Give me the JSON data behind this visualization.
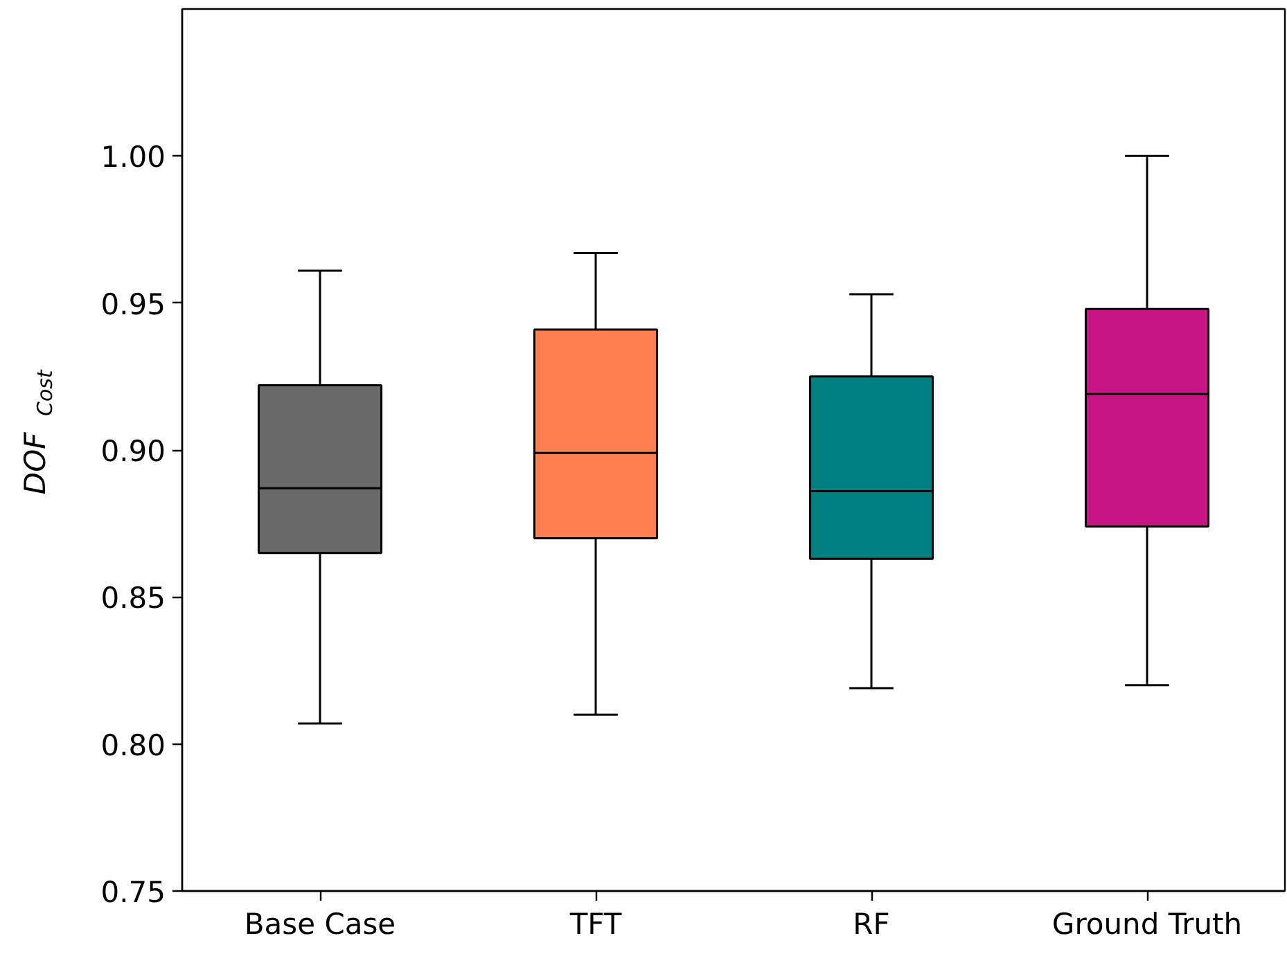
{
  "chart_data": {
    "type": "box",
    "ylabel": "DOF$_{Cost}$",
    "categories": [
      "Base Case",
      "TFT",
      "RF",
      "Ground Truth"
    ],
    "colors": [
      "#696969",
      "#ff7f50",
      "#008080",
      "#c71585"
    ],
    "boxes": [
      {
        "low": 0.807,
        "q1": 0.865,
        "median": 0.887,
        "q3": 0.922,
        "high": 0.961
      },
      {
        "low": 0.81,
        "q1": 0.87,
        "median": 0.899,
        "q3": 0.941,
        "high": 0.967
      },
      {
        "low": 0.819,
        "q1": 0.863,
        "median": 0.886,
        "q3": 0.925,
        "high": 0.953
      },
      {
        "low": 0.82,
        "q1": 0.874,
        "median": 0.919,
        "q3": 0.948,
        "high": 1.0
      }
    ],
    "ylim": [
      0.75,
      1.05
    ],
    "yticks": [
      0.75,
      {
        "value": 0.8,
        "label": "0.80"
      },
      0.85,
      {
        "value": 0.9,
        "label": "0.90"
      },
      0.95,
      {
        "value": 1.0,
        "label": "1.00"
      }
    ],
    "grid": false
  }
}
